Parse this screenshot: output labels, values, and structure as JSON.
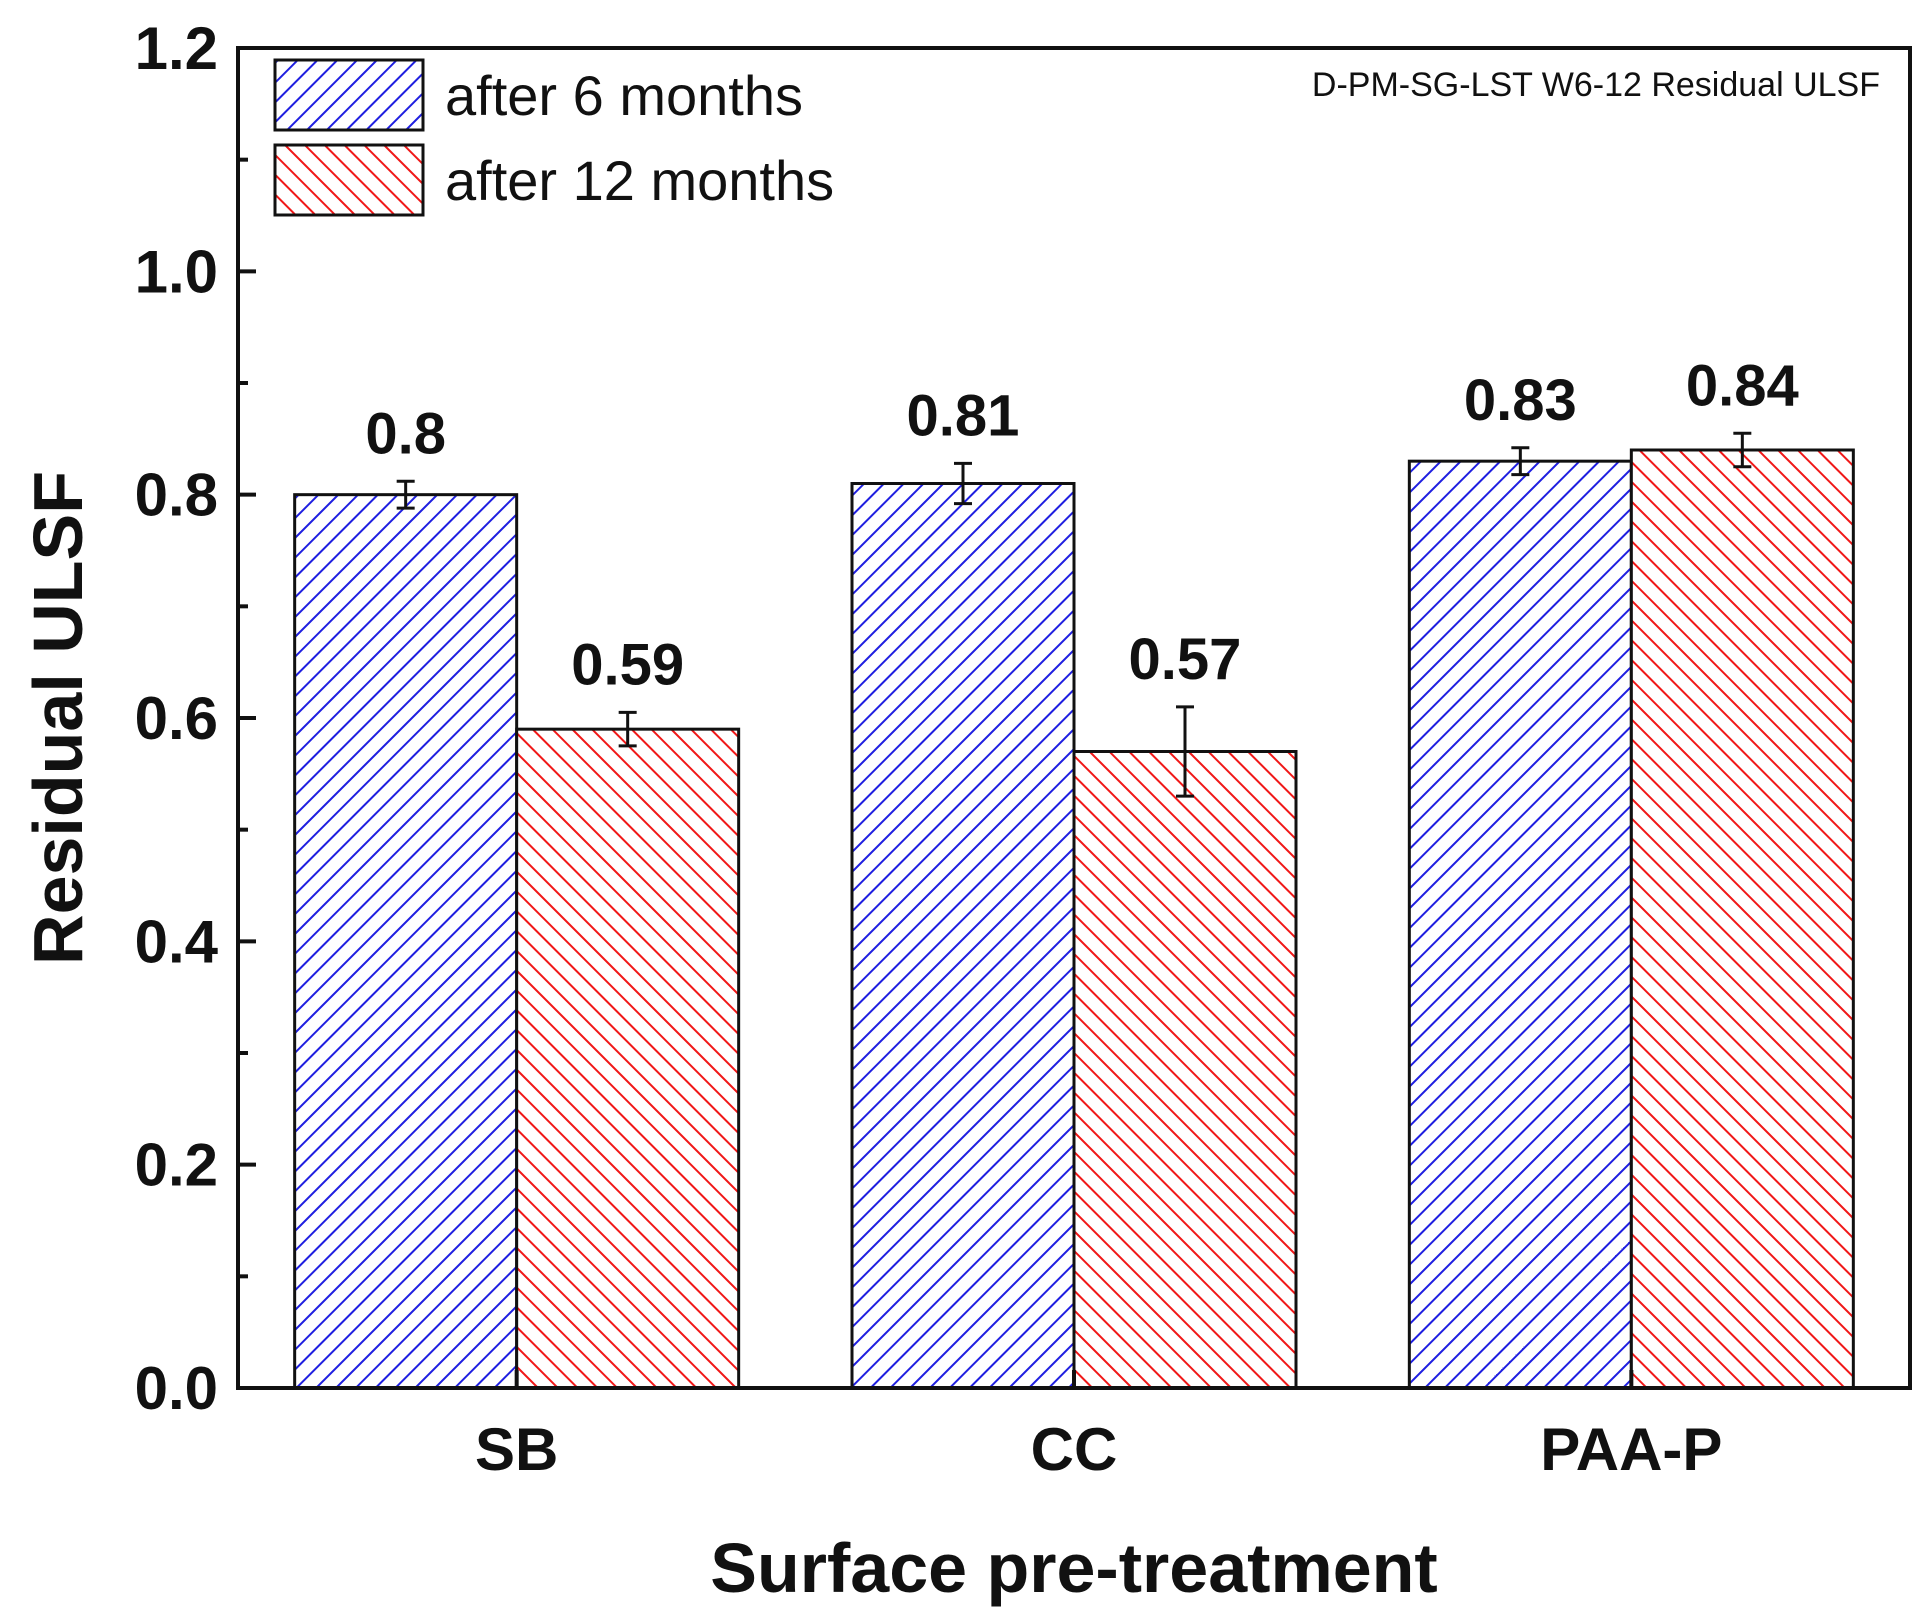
{
  "chart_data": {
    "type": "bar",
    "annotation": "D-PM-SG-LST W6-12 Residual ULSF",
    "xlabel": "Surface pre-treatment",
    "ylabel": "Residual ULSF",
    "ylim": [
      0.0,
      1.2
    ],
    "yticks": [
      "0.0",
      "0.2",
      "0.4",
      "0.6",
      "0.8",
      "1.0",
      "1.2"
    ],
    "categories": [
      "SB",
      "CC",
      "PAA-P"
    ],
    "legend_position": "top-left",
    "grid": false,
    "series": [
      {
        "name": "after 6 months",
        "color": "#1f1fe0",
        "pattern": "diagonal-up",
        "values": [
          0.8,
          0.81,
          0.83
        ],
        "errors": [
          0.012,
          0.018,
          0.012
        ],
        "labels": [
          "0.8",
          "0.81",
          "0.83"
        ]
      },
      {
        "name": "after 12 months",
        "color": "#f01818",
        "pattern": "diagonal-down",
        "values": [
          0.59,
          0.57,
          0.84
        ],
        "errors": [
          0.015,
          0.04,
          0.015
        ],
        "labels": [
          "0.59",
          "0.57",
          "0.84"
        ]
      }
    ]
  }
}
